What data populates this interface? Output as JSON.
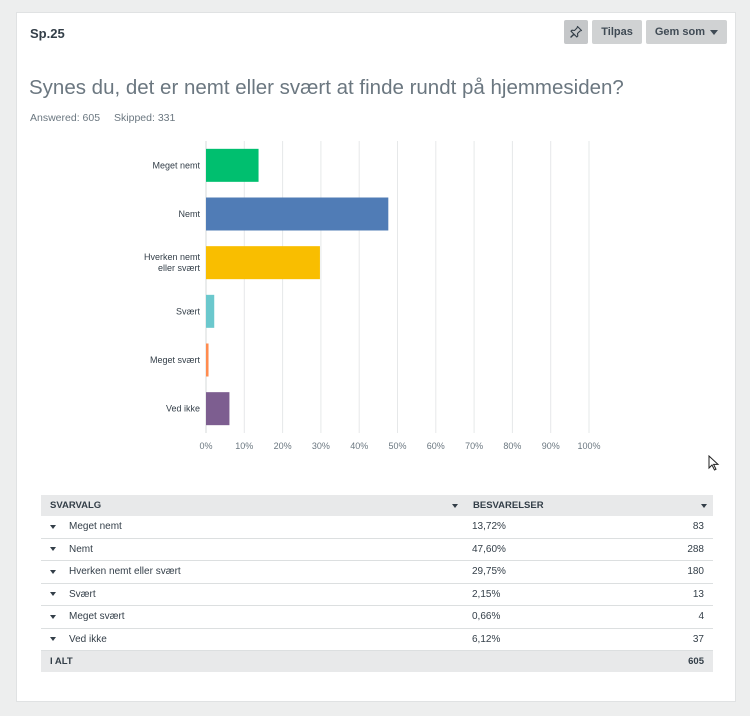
{
  "question": {
    "number": "Sp.25",
    "title": "Synes du, det er nemt eller svært at finde rundt på hjemmesiden?",
    "answered": "Answered: 605",
    "skipped": "Skipped: 331"
  },
  "toolbar": {
    "pin_icon": "pin-icon",
    "customize_label": "Tilpas",
    "save_as_label": "Gem som"
  },
  "chart_data": {
    "type": "bar",
    "orientation": "horizontal",
    "categories": [
      "Meget nemt",
      "Nemt",
      "Hverken nemt eller svært",
      "Svært",
      "Meget svært",
      "Ved ikke"
    ],
    "category_lines": [
      [
        "Meget nemt"
      ],
      [
        "Nemt"
      ],
      [
        "Hverken nemt",
        "eller svært"
      ],
      [
        "Svært"
      ],
      [
        "Meget svært"
      ],
      [
        "Ved ikke"
      ]
    ],
    "values": [
      13.72,
      47.6,
      29.75,
      2.15,
      0.66,
      6.12
    ],
    "colors": [
      "#00bf6f",
      "#507cb6",
      "#f9be00",
      "#6bc8cd",
      "#ff8b4f",
      "#7d5e90"
    ],
    "xlim": [
      0,
      100
    ],
    "xticks": [
      0,
      10,
      20,
      30,
      40,
      50,
      60,
      70,
      80,
      90,
      100
    ],
    "xtick_labels": [
      "0%",
      "10%",
      "20%",
      "30%",
      "40%",
      "50%",
      "60%",
      "70%",
      "80%",
      "90%",
      "100%"
    ],
    "grid": true
  },
  "table": {
    "col1_header": "SVARVALG",
    "col2_header": "BESVARELSER",
    "rows": [
      {
        "choice": "Meget nemt",
        "percent": "13,72%",
        "count": "83"
      },
      {
        "choice": "Nemt",
        "percent": "47,60%",
        "count": "288"
      },
      {
        "choice": "Hverken nemt eller svært",
        "percent": "29,75%",
        "count": "180"
      },
      {
        "choice": "Svært",
        "percent": "2,15%",
        "count": "13"
      },
      {
        "choice": "Meget svært",
        "percent": "0,66%",
        "count": "4"
      },
      {
        "choice": "Ved ikke",
        "percent": "6,12%",
        "count": "37"
      }
    ],
    "total_label": "I ALT",
    "total_count": "605"
  }
}
